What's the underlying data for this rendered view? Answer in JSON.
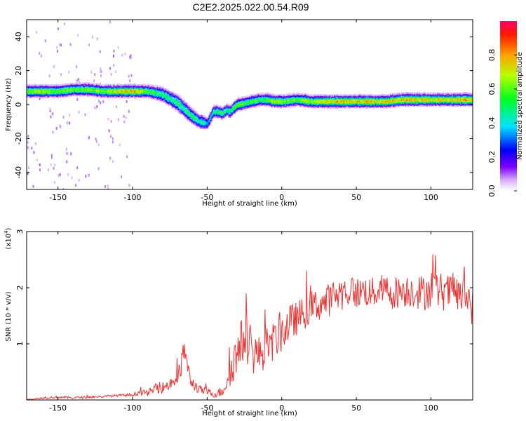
{
  "title": "C2E2.2025.022.00.54.R09",
  "chart_data": [
    {
      "type": "heatmap",
      "title": "C2E2.2025.022.00.54.R09",
      "xlabel": "Height of straight line (km)",
      "ylabel": "Frequency (Hz)",
      "xlim": [
        -171,
        128
      ],
      "ylim": [
        -50,
        50
      ],
      "xticks": [
        -150,
        -100,
        -50,
        0,
        50,
        100
      ],
      "xtick_labels": [
        "-150",
        "-100",
        "-50",
        "0",
        "50",
        "100"
      ],
      "yticks": [
        -40,
        -20,
        0,
        20,
        40
      ],
      "ytick_labels": [
        "-40",
        "-20",
        "0",
        "20",
        "40"
      ],
      "grid": false,
      "colorbar": {
        "label": "Normalized spectral amplitude",
        "range": [
          0,
          1
        ],
        "ticks": [
          0.0,
          0.2,
          0.4,
          0.6,
          0.8
        ],
        "tick_labels": [
          "0.0",
          "0.2",
          "0.4",
          "0.6",
          "0.8"
        ],
        "colormap": "rainbow"
      },
      "ridge": {
        "x": [
          -170,
          -160,
          -150,
          -140,
          -130,
          -120,
          -110,
          -100,
          -90,
          -80,
          -70,
          -65,
          -60,
          -55,
          -50,
          -46,
          -43,
          -40,
          -37,
          -35,
          -30,
          -25,
          -20,
          -15,
          -10,
          -5,
          0,
          10,
          20,
          30,
          40,
          50,
          60,
          70,
          80,
          90,
          100,
          110,
          120,
          127
        ],
        "freq": [
          8,
          8,
          8,
          9,
          9,
          8,
          8,
          8,
          8,
          6,
          1,
          -3,
          -7,
          -10,
          -11,
          -4,
          -4,
          -5,
          -3,
          -4,
          0,
          1,
          2,
          3,
          3,
          2,
          2,
          3,
          2,
          2,
          2,
          2,
          2,
          2,
          3,
          3,
          3,
          3,
          3,
          3
        ],
        "amplitude": [
          0.6,
          0.7,
          0.6,
          0.6,
          0.65,
          0.6,
          0.75,
          0.8,
          0.6,
          0.5,
          0.5,
          0.5,
          0.5,
          0.45,
          0.4,
          0.45,
          0.5,
          0.55,
          0.45,
          0.5,
          0.6,
          0.55,
          0.6,
          0.55,
          0.6,
          0.7,
          0.65,
          0.6,
          0.7,
          0.75,
          0.8,
          0.75,
          0.8,
          0.75,
          0.8,
          0.8,
          0.75,
          0.75,
          0.8,
          0.75
        ],
        "bandwidth_hz": [
          5,
          5,
          5,
          5,
          5,
          5,
          5,
          5,
          5,
          6,
          7,
          7,
          6,
          6,
          5,
          5,
          5,
          5,
          5,
          5,
          5,
          5,
          5,
          5,
          5,
          5,
          5,
          5,
          5,
          5,
          5,
          5,
          5,
          5,
          5,
          5,
          5,
          5,
          5,
          5
        ]
      }
    },
    {
      "type": "line",
      "xlabel": "Height of straight line (km)",
      "ylabel": "SNR (10 * v/v)",
      "y_multiplier_label": "(x10",
      "y_multiplier_exp": "4",
      "xlim": [
        -171,
        128
      ],
      "ylim": [
        0,
        3
      ],
      "xticks": [
        -150,
        -100,
        -50,
        0,
        50,
        100
      ],
      "xtick_labels": [
        "-150",
        "-100",
        "-50",
        "0",
        "50",
        "100"
      ],
      "yticks": [
        1,
        2,
        3
      ],
      "ytick_labels": [
        "1",
        "2",
        "3"
      ],
      "grid": false,
      "series": [
        {
          "color": "#ee3333",
          "x": [
            -171,
            -165,
            -160,
            -150,
            -140,
            -130,
            -120,
            -110,
            -100,
            -95,
            -90,
            -85,
            -80,
            -75,
            -70,
            -67,
            -65,
            -63,
            -60,
            -55,
            -50,
            -45,
            -40,
            -36,
            -33,
            -30,
            -27,
            -25,
            -22,
            -20,
            -15,
            -10,
            -5,
            0,
            5,
            10,
            15,
            20,
            25,
            30,
            35,
            40,
            45,
            50,
            55,
            60,
            65,
            70,
            75,
            80,
            85,
            90,
            95,
            100,
            105,
            110,
            115,
            120,
            125,
            128
          ],
          "y": [
            0.01,
            0.02,
            0.04,
            0.05,
            0.04,
            0.05,
            0.06,
            0.08,
            0.09,
            0.14,
            0.12,
            0.2,
            0.22,
            0.28,
            0.4,
            0.6,
            1.0,
            0.5,
            0.3,
            0.18,
            0.15,
            0.1,
            0.15,
            0.4,
            0.65,
            0.8,
            1.0,
            1.15,
            1.0,
            0.85,
            0.8,
            0.95,
            1.05,
            1.2,
            1.35,
            1.45,
            1.55,
            1.65,
            1.7,
            1.75,
            1.85,
            1.9,
            1.95,
            1.9,
            1.95,
            1.9,
            1.95,
            1.95,
            1.9,
            1.95,
            1.95,
            1.95,
            1.9,
            2.0,
            1.95,
            1.9,
            1.95,
            1.85,
            1.85,
            1.6
          ],
          "noise_amplitude": [
            0.01,
            0.01,
            0.02,
            0.02,
            0.02,
            0.02,
            0.02,
            0.02,
            0.03,
            0.05,
            0.05,
            0.08,
            0.1,
            0.12,
            0.18,
            0.25,
            0.3,
            0.2,
            0.12,
            0.08,
            0.07,
            0.06,
            0.1,
            0.25,
            0.35,
            0.4,
            0.45,
            0.45,
            0.4,
            0.4,
            0.35,
            0.35,
            0.35,
            0.35,
            0.35,
            0.3,
            0.3,
            0.3,
            0.3,
            0.3,
            0.3,
            0.3,
            0.3,
            0.28,
            0.28,
            0.28,
            0.28,
            0.3,
            0.3,
            0.3,
            0.3,
            0.32,
            0.32,
            0.35,
            0.35,
            0.32,
            0.32,
            0.35,
            0.35,
            0.3
          ]
        }
      ]
    }
  ]
}
